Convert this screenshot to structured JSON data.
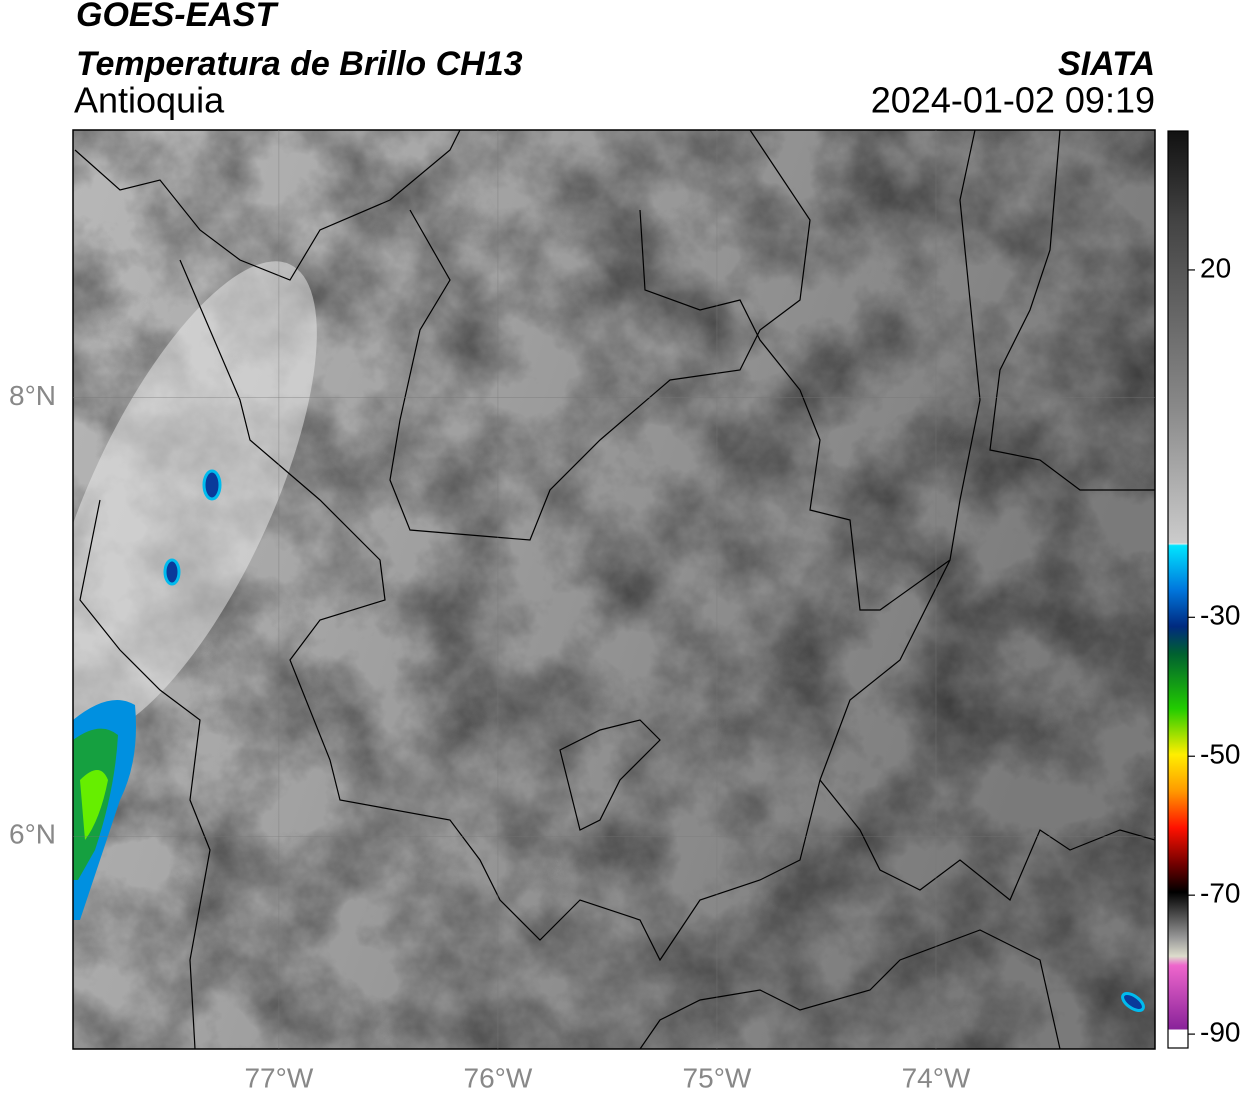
{
  "header": {
    "title": "GOES-EAST",
    "subtitle": "Temperatura de Brillo CH13",
    "region": "Antioquia",
    "source": "SIATA",
    "datetime": "2024-01-02 09:19"
  },
  "map": {
    "lonlim": [
      -77.94,
      -73
    ],
    "latlim": [
      5.03,
      9.22
    ],
    "lonticks": [
      {
        "value": -77,
        "label": "77°W"
      },
      {
        "value": -76,
        "label": "76°W"
      },
      {
        "value": -75,
        "label": "75°W"
      },
      {
        "value": -74,
        "label": "74°W"
      }
    ],
    "latticks": [
      {
        "value": 8,
        "label": "8°N"
      },
      {
        "value": 6,
        "label": "6°N"
      }
    ]
  },
  "colorbar": {
    "lim": [
      -92,
      40
    ],
    "ticks": [
      20,
      -30,
      -50,
      -70,
      -90
    ]
  }
}
